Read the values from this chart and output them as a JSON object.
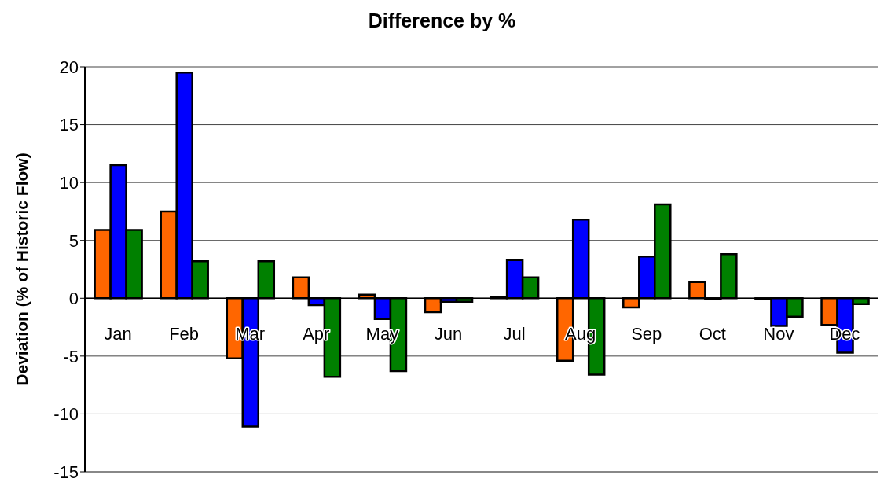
{
  "chart_data": {
    "type": "bar",
    "title": "Difference by %",
    "ylabel": "Deviation (% of Historic Flow)",
    "categories": [
      "Jan",
      "Feb",
      "Mar",
      "Apr",
      "May",
      "Jun",
      "Jul",
      "Aug",
      "Sep",
      "Oct",
      "Nov",
      "Dec"
    ],
    "series": [
      {
        "color": "#ff6600",
        "values": [
          5.9,
          7.5,
          -5.2,
          1.8,
          0.3,
          -1.2,
          0.1,
          -5.4,
          -0.8,
          1.4,
          -0.1,
          -2.3
        ]
      },
      {
        "color": "#0000ff",
        "values": [
          11.5,
          19.5,
          -11.1,
          -0.6,
          -1.8,
          -0.3,
          3.3,
          6.8,
          3.6,
          -0.1,
          -2.4,
          -4.7
        ]
      },
      {
        "color": "#008000",
        "values": [
          5.9,
          3.2,
          3.2,
          -6.8,
          -6.3,
          -0.3,
          1.8,
          -6.6,
          8.1,
          3.8,
          -1.6,
          -0.5
        ]
      }
    ],
    "ylim": [
      -15,
      20
    ],
    "yticks": [
      -15,
      -10,
      -5,
      0,
      5,
      10,
      15,
      20
    ],
    "grid": "y"
  }
}
